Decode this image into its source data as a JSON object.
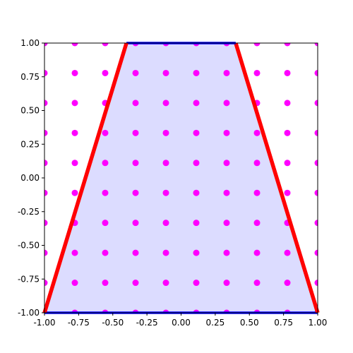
{
  "chart_data": {
    "type": "scatter",
    "x": [
      -1,
      -0.7778,
      -0.5556,
      -0.3333,
      -0.1111,
      0.1111,
      0.3333,
      0.5556,
      0.7778,
      1,
      -1,
      -0.7778,
      -0.5556,
      -0.3333,
      -0.1111,
      0.1111,
      0.3333,
      0.5556,
      0.7778,
      1,
      -1,
      -0.7778,
      -0.5556,
      -0.3333,
      -0.1111,
      0.1111,
      0.3333,
      0.5556,
      0.7778,
      1,
      -1,
      -0.7778,
      -0.5556,
      -0.3333,
      -0.1111,
      0.1111,
      0.3333,
      0.5556,
      0.7778,
      1,
      -1,
      -0.7778,
      -0.5556,
      -0.3333,
      -0.1111,
      0.1111,
      0.3333,
      0.5556,
      0.7778,
      1,
      -1,
      -0.7778,
      -0.5556,
      -0.3333,
      -0.1111,
      0.1111,
      0.3333,
      0.5556,
      0.7778,
      1,
      -1,
      -0.7778,
      -0.5556,
      -0.3333,
      -0.1111,
      0.1111,
      0.3333,
      0.5556,
      0.7778,
      1,
      -1,
      -0.7778,
      -0.5556,
      -0.3333,
      -0.1111,
      0.1111,
      0.3333,
      0.5556,
      0.7778,
      1,
      -1,
      -0.7778,
      -0.5556,
      -0.3333,
      -0.1111,
      0.1111,
      0.3333,
      0.5556,
      0.7778,
      1,
      -1,
      -0.7778,
      -0.5556,
      -0.3333,
      -0.1111,
      0.1111,
      0.3333,
      0.5556,
      0.7778,
      1
    ],
    "y": [
      -1,
      -1,
      -1,
      -1,
      -1,
      -1,
      -1,
      -1,
      -1,
      -1,
      -0.7778,
      -0.7778,
      -0.7778,
      -0.7778,
      -0.7778,
      -0.7778,
      -0.7778,
      -0.7778,
      -0.7778,
      -0.7778,
      -0.5556,
      -0.5556,
      -0.5556,
      -0.5556,
      -0.5556,
      -0.5556,
      -0.5556,
      -0.5556,
      -0.5556,
      -0.5556,
      -0.3333,
      -0.3333,
      -0.3333,
      -0.3333,
      -0.3333,
      -0.3333,
      -0.3333,
      -0.3333,
      -0.3333,
      -0.3333,
      -0.1111,
      -0.1111,
      -0.1111,
      -0.1111,
      -0.1111,
      -0.1111,
      -0.1111,
      -0.1111,
      -0.1111,
      -0.1111,
      0.1111,
      0.1111,
      0.1111,
      0.1111,
      0.1111,
      0.1111,
      0.1111,
      0.1111,
      0.1111,
      0.1111,
      0.3333,
      0.3333,
      0.3333,
      0.3333,
      0.3333,
      0.3333,
      0.3333,
      0.3333,
      0.3333,
      0.3333,
      0.5556,
      0.5556,
      0.5556,
      0.5556,
      0.5556,
      0.5556,
      0.5556,
      0.5556,
      0.5556,
      0.5556,
      0.7778,
      0.7778,
      0.7778,
      0.7778,
      0.7778,
      0.7778,
      0.7778,
      0.7778,
      0.7778,
      0.7778,
      1,
      1,
      1,
      1,
      1,
      1,
      1,
      1,
      1,
      1
    ],
    "color": "#ff00ff",
    "polygon": {
      "x": [
        -1,
        1,
        0.4,
        -0.4
      ],
      "y": [
        -1,
        -1,
        1,
        1
      ],
      "fill": "#dcdcff",
      "edge_colors": [
        "#0000ff",
        "#ff0000",
        "#0000ff",
        "#ff0000"
      ]
    },
    "xlim": [
      -1,
      1
    ],
    "ylim": [
      -1,
      1
    ],
    "xticks": [
      {
        "value": -1,
        "label": "-1.00"
      },
      {
        "value": -0.75,
        "label": "-0.75"
      },
      {
        "value": -0.5,
        "label": "-0.50"
      },
      {
        "value": -0.25,
        "label": "-0.25"
      },
      {
        "value": 0,
        "label": "0.00"
      },
      {
        "value": 0.25,
        "label": "0.25"
      },
      {
        "value": 0.5,
        "label": "0.50"
      },
      {
        "value": 0.75,
        "label": "0.75"
      },
      {
        "value": 1,
        "label": "1.00"
      }
    ],
    "yticks": [
      {
        "value": -1,
        "label": "-1.00"
      },
      {
        "value": -0.75,
        "label": "-0.75"
      },
      {
        "value": -0.5,
        "label": "-0.50"
      },
      {
        "value": -0.25,
        "label": "-0.25"
      },
      {
        "value": 0,
        "label": "0.00"
      },
      {
        "value": 0.25,
        "label": "0.25"
      },
      {
        "value": 0.5,
        "label": "0.50"
      },
      {
        "value": 0.75,
        "label": "0.75"
      },
      {
        "value": 1,
        "label": "1.00"
      }
    ]
  }
}
